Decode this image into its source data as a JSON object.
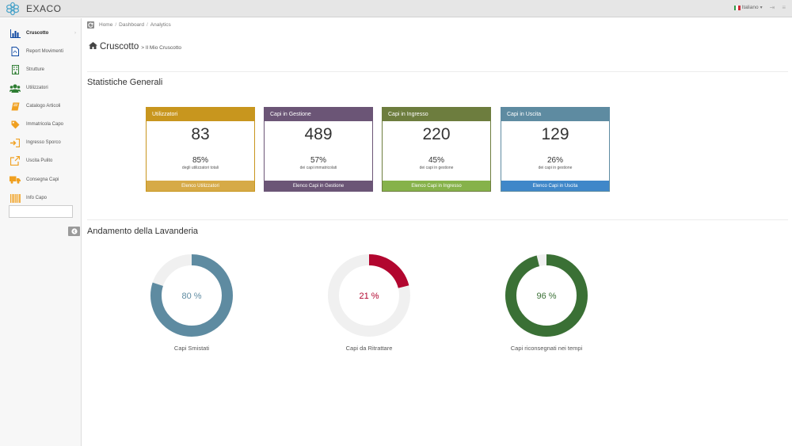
{
  "brand": {
    "name": "EXACO"
  },
  "topbar": {
    "language": "Italiano",
    "lang_caret": "▾",
    "exit_icon": "⇥",
    "menu_icon": "≡"
  },
  "colors": {
    "accent": "#0d47a1",
    "gold": "#c8961e",
    "purple": "#6b5576",
    "olive": "#6d7d3e",
    "steel": "#5e8ba1",
    "crimson": "#b2062f",
    "green": "#3a7035",
    "track": "#f0f0f0"
  },
  "sidebar": {
    "items": [
      {
        "label": "Cruscotto",
        "icon": "bar-chart-icon",
        "active": true,
        "caret": "›"
      },
      {
        "label": "Report Movimenti",
        "icon": "pdf-file-icon"
      },
      {
        "label": "Strutture",
        "icon": "building-icon"
      },
      {
        "label": "Utilizzatori",
        "icon": "users-icon"
      },
      {
        "label": "Catalogo Articoli",
        "icon": "book-icon"
      },
      {
        "label": "Immatricola Capo",
        "icon": "tag-icon"
      },
      {
        "label": "Ingresso Sporco",
        "icon": "sign-in-icon"
      },
      {
        "label": "Uscita Pulito",
        "icon": "external-link-icon"
      },
      {
        "label": "Consegna Capi",
        "icon": "truck-icon"
      },
      {
        "label": "Info Capo",
        "icon": "barcode-icon"
      }
    ],
    "search": {
      "value": "",
      "placeholder": ""
    }
  },
  "breadcrumb": [
    {
      "label": "Home"
    },
    {
      "label": "Dashboard"
    },
    {
      "label": "Analytics"
    }
  ],
  "breadcrumb_sep": "/",
  "page": {
    "title": "Cruscotto",
    "subtitle": "> Il Mio Cruscotto"
  },
  "sections": {
    "stats_title": "Statistiche Generali",
    "trend_title": "Andamento della Lavanderia"
  },
  "stats": [
    {
      "title": "Utilizzatori",
      "value": "83",
      "percent": "85%",
      "desc": "degli utilizzatori totali",
      "footer": "Elenco Utilizzatori",
      "head_color": "#c8961e",
      "foot_color": "#d6aa47"
    },
    {
      "title": "Capi in Gestione",
      "value": "489",
      "percent": "57%",
      "desc": "dei capi immatricolati",
      "footer": "Elenco Capi in Gestione",
      "head_color": "#6b5576",
      "foot_color": "#6b5576"
    },
    {
      "title": "Capi in Ingresso",
      "value": "220",
      "percent": "45%",
      "desc": "dei capi in gestione",
      "footer": "Elenco Capi in Ingresso",
      "head_color": "#6d7d3e",
      "foot_color": "#86b24a"
    },
    {
      "title": "Capi in Uscita",
      "value": "129",
      "percent": "26%",
      "desc": "dei capi in gestione",
      "footer": "Elenco Capi in Uscita",
      "head_color": "#5e8ba1",
      "foot_color": "#3f87c9"
    }
  ],
  "gauges": [
    {
      "label": "Capi Smistati",
      "percent": 80,
      "display": "80 %",
      "color": "#5e8ba1"
    },
    {
      "label": "Capi da Ritrattare",
      "percent": 21,
      "display": "21 %",
      "color": "#b2062f"
    },
    {
      "label": "Capi riconsegnati nei tempi",
      "percent": 96,
      "display": "96 %",
      "color": "#3a7035"
    }
  ]
}
